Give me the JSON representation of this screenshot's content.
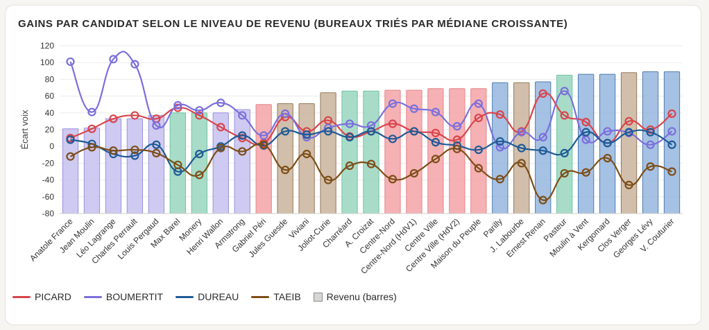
{
  "chart_data": {
    "type": "bar+line",
    "title": "GAINS PAR CANDIDAT SELON LE NIVEAU DE REVENU (BUREAUX TRIÉS PAR MÉDIANE CROISSANTE)",
    "ylabel": "Écart voix",
    "ylim": [
      -80,
      120
    ],
    "yticks": [
      -80,
      -60,
      -40,
      -20,
      0,
      20,
      40,
      60,
      80,
      100,
      120
    ],
    "grid": true,
    "categories": [
      "Anatole France",
      "Jean Moulin",
      "Léo Lagrange",
      "Charles Perrault",
      "Louis Pergaud",
      "Max Barel",
      "Monery",
      "Henri Wallon",
      "Armstrong",
      "Gabriel Péri",
      "Jules Guesde",
      "Viviani",
      "Joliot-Curie",
      "Charréard",
      "A. Croizat",
      "Centre-Nord",
      "Centre-Nord (HdV1)",
      "Centre Ville",
      "Centre Ville (HdV2)",
      "Maison du Peuple",
      "Parilly",
      "J. Labourbe",
      "Ernest Renan",
      "Pasteur",
      "Moulin à Vent",
      "Kergomard",
      "Clos Verger",
      "Georges Lévy",
      "V. Couturier"
    ],
    "bars": {
      "name": "Revenu (barres)",
      "values": [
        21,
        22,
        33,
        33,
        37,
        40,
        40,
        40,
        44,
        50,
        51,
        51,
        64,
        66,
        66,
        67,
        67,
        69,
        69,
        69,
        76,
        76,
        77,
        85,
        86,
        86,
        88,
        89,
        89
      ],
      "winner": [
        "BOUMERTIT",
        "BOUMERTIT",
        "BOUMERTIT",
        "BOUMERTIT",
        "BOUMERTIT",
        "PASTEUR",
        "PASTEUR",
        "BOUMERTIT",
        "BOUMERTIT",
        "PICARD",
        "TAEIB",
        "TAEIB",
        "TAEIB",
        "PASTEUR",
        "PASTEUR",
        "PICARD",
        "PICARD",
        "PICARD",
        "PICARD",
        "PICARD",
        "DUREAU",
        "TAEIB",
        "DUREAU",
        "PASTEUR",
        "DUREAU",
        "DUREAU",
        "TAEIB",
        "DUREAU",
        "DUREAU"
      ]
    },
    "series": [
      {
        "name": "PICARD",
        "color": "#d9444b",
        "values": [
          10,
          21,
          33,
          37,
          33,
          46,
          37,
          23,
          10,
          4,
          35,
          18,
          31,
          12,
          18,
          27,
          18,
          16,
          8,
          34,
          38,
          18,
          63,
          37,
          29,
          4,
          30,
          20,
          39
        ]
      },
      {
        "name": "BOUMERTIT",
        "color": "#7b6fdc",
        "values": [
          101,
          41,
          104,
          98,
          25,
          49,
          43,
          52,
          37,
          13,
          39,
          11,
          22,
          27,
          25,
          51,
          45,
          41,
          24,
          51,
          -1,
          17,
          11,
          66,
          8,
          18,
          16,
          2,
          18
        ]
      },
      {
        "name": "DUREAU",
        "color": "#1f5a96",
        "values": [
          8,
          3,
          -9,
          -11,
          2,
          -30,
          -9,
          0,
          13,
          1,
          18,
          14,
          18,
          11,
          18,
          9,
          18,
          5,
          1,
          -4,
          6,
          -2,
          -5,
          -8,
          17,
          4,
          17,
          17,
          2
        ]
      },
      {
        "name": "TAEIB",
        "color": "#7d4d17",
        "values": [
          -12,
          -1,
          -5,
          -4,
          -8,
          -22,
          -34,
          -2,
          -6,
          2,
          -28,
          -9,
          -40,
          -23,
          -21,
          -39,
          -32,
          -15,
          -3,
          -26,
          -39,
          -20,
          -64,
          -32,
          -31,
          -14,
          -46,
          -24,
          -30
        ]
      }
    ],
    "bar_palette": {
      "BOUMERTIT": "#c9c5f0",
      "PICARD": "#f4a9ac",
      "DUREAU": "#9cbbe0",
      "TAEIB": "#cdb9a3",
      "PASTEUR": "#9fd9c3"
    },
    "bar_stroke": {
      "BOUMERTIT": "#8f86dd",
      "PICARD": "#e27a7f",
      "DUREAU": "#3c6ea8",
      "TAEIB": "#8a6a48",
      "PASTEUR": "#5dbf9a"
    }
  },
  "legend": {
    "items": [
      {
        "label": "PICARD",
        "color": "#d9444b"
      },
      {
        "label": "BOUMERTIT",
        "color": "#7b6fdc"
      },
      {
        "label": "DUREAU",
        "color": "#1f5a96"
      },
      {
        "label": "TAEIB",
        "color": "#7d4d17"
      }
    ],
    "bars_label": "Revenu (barres)"
  }
}
